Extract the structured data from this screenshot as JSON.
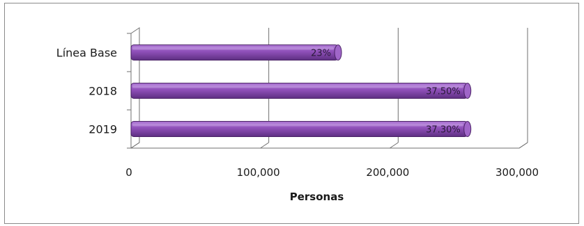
{
  "chart_data": {
    "type": "bar",
    "orientation": "horizontal",
    "categories": [
      "Línea Base",
      "2018",
      "2019"
    ],
    "values": [
      160000,
      260000,
      260000
    ],
    "data_labels": [
      "23%",
      "37.50%",
      "37.30%"
    ],
    "title": "",
    "xlabel": "Personas",
    "ylabel": "",
    "xlim": [
      0,
      300000
    ],
    "x_ticks": [
      0,
      100000,
      200000,
      300000
    ],
    "x_tick_labels": [
      "0",
      "100,000",
      "200,000",
      "300,000"
    ],
    "grid": true,
    "bar_color": "#8e4fb8"
  }
}
